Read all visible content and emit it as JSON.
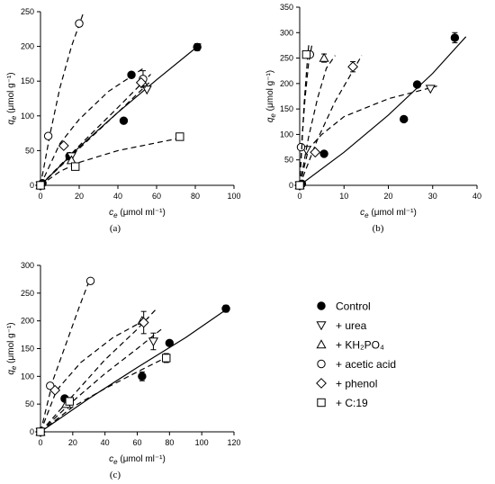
{
  "legend": [
    {
      "marker": "filled-circle",
      "label": "Control"
    },
    {
      "marker": "down-triangle",
      "label": "+ urea"
    },
    {
      "marker": "up-triangle",
      "label": "+ KH₂PO₄"
    },
    {
      "marker": "circle",
      "label": "+ acetic acid"
    },
    {
      "marker": "diamond",
      "label": "+ phenol"
    },
    {
      "marker": "square",
      "label": "+ C:19"
    }
  ],
  "chart_data": [
    {
      "type": "scatter",
      "panel_label": "(a)",
      "xlabel": "c_e (μmol ml⁻¹)",
      "ylabel": "q_e (μmol g⁻¹)",
      "xlim": [
        0,
        100
      ],
      "ylim": [
        0,
        250
      ],
      "xticks": [
        0,
        20,
        40,
        60,
        80,
        100
      ],
      "yticks": [
        0,
        50,
        100,
        150,
        200,
        250
      ],
      "series": [
        {
          "name": "Control",
          "marker": "filled-circle",
          "line": "solid",
          "points": [
            [
              0,
              0
            ],
            [
              1,
              3
            ],
            [
              15,
              42
            ],
            [
              43,
              93
            ],
            [
              47,
              159
            ],
            [
              81,
              199
            ]
          ],
          "errors": [
            [
              81,
              199,
              5
            ]
          ],
          "curve": [
            [
              0,
              0
            ],
            [
              20,
              55
            ],
            [
              40,
              105
            ],
            [
              60,
              152
            ],
            [
              83,
              204
            ]
          ]
        },
        {
          "name": "+ urea",
          "marker": "down-triangle",
          "line": "dashed",
          "points": [
            [
              0,
              0
            ],
            [
              16,
              42
            ],
            [
              55,
              138
            ]
          ],
          "curve": [
            [
              0,
              0
            ],
            [
              20,
              53
            ],
            [
              40,
              105
            ],
            [
              57,
              150
            ]
          ]
        },
        {
          "name": "+ KH₂PO₄",
          "marker": "up-triangle",
          "line": "dashed",
          "points": [
            [
              0,
              0
            ],
            [
              16,
              36
            ],
            [
              53,
              148
            ]
          ],
          "curve": [
            [
              0,
              0
            ],
            [
              20,
              57
            ],
            [
              40,
              112
            ],
            [
              57,
              160
            ]
          ]
        },
        {
          "name": "+ acetic acid",
          "marker": "circle",
          "line": "dashed",
          "points": [
            [
              0,
              0
            ],
            [
              4,
              71
            ],
            [
              20,
              233
            ],
            [
              53,
              153
            ]
          ],
          "errors": [
            [
              53,
              153,
              12
            ]
          ],
          "curve": [
            [
              0,
              0
            ],
            [
              5,
              75
            ],
            [
              10,
              140
            ],
            [
              16,
              200
            ],
            [
              22,
              247
            ]
          ]
        },
        {
          "name": "+ phenol",
          "marker": "diamond",
          "line": "dashed",
          "points": [
            [
              0,
              0
            ],
            [
              12,
              57
            ],
            [
              52,
              148
            ]
          ],
          "curve": [
            [
              0,
              0
            ],
            [
              10,
              60
            ],
            [
              20,
              95
            ],
            [
              35,
              135
            ],
            [
              54,
              170
            ]
          ]
        },
        {
          "name": "+ C:19",
          "marker": "square",
          "line": "dashed",
          "points": [
            [
              0,
              0
            ],
            [
              18,
              27
            ],
            [
              72,
              70
            ]
          ],
          "errors": [
            [
              72,
              70,
              5
            ]
          ],
          "curve": [
            [
              0,
              0
            ],
            [
              10,
              20
            ],
            [
              20,
              33
            ],
            [
              40,
              50
            ],
            [
              72,
              68
            ]
          ]
        }
      ]
    },
    {
      "type": "scatter",
      "panel_label": "(b)",
      "xlabel": "c_e (μmol ml⁻¹)",
      "ylabel": "q_e (μmol g⁻¹)",
      "xlim": [
        0,
        40
      ],
      "ylim": [
        0,
        350
      ],
      "xticks": [
        0,
        10,
        20,
        30,
        40
      ],
      "yticks": [
        0,
        50,
        100,
        150,
        200,
        250,
        300,
        350
      ],
      "series": [
        {
          "name": "Control",
          "marker": "filled-circle",
          "line": "solid",
          "points": [
            [
              0.5,
              3
            ],
            [
              5.5,
              62
            ],
            [
              23.5,
              130
            ],
            [
              26.5,
              198
            ],
            [
              35,
              290
            ]
          ],
          "errors": [
            [
              35,
              290,
              10
            ]
          ],
          "curve": [
            [
              0,
              0
            ],
            [
              10,
              65
            ],
            [
              20,
              138
            ],
            [
              30,
              220
            ],
            [
              37.5,
              292
            ]
          ]
        },
        {
          "name": "+ urea",
          "marker": "down-triangle",
          "line": "dashed",
          "points": [
            [
              0,
              0
            ],
            [
              1.5,
              70
            ],
            [
              29.5,
              190
            ]
          ],
          "curve": [
            [
              0,
              0
            ],
            [
              2,
              72
            ],
            [
              5,
              100
            ],
            [
              10,
              135
            ],
            [
              20,
              170
            ],
            [
              31,
              195
            ]
          ]
        },
        {
          "name": "+ KH₂PO₄",
          "marker": "up-triangle",
          "line": "dashed",
          "points": [
            [
              0,
              0
            ],
            [
              5.5,
              250
            ]
          ],
          "errors": [
            [
              5.5,
              250,
              8
            ]
          ],
          "curve": [
            [
              0,
              0
            ],
            [
              2,
              95
            ],
            [
              4,
              170
            ],
            [
              6,
              230
            ],
            [
              8,
              255
            ]
          ]
        },
        {
          "name": "+ acetic acid",
          "marker": "circle",
          "line": "dashed",
          "points": [
            [
              0,
              0
            ],
            [
              0.3,
              75
            ],
            [
              2.3,
              257
            ]
          ],
          "curve": [
            [
              0,
              0
            ],
            [
              0.5,
              90
            ],
            [
              1.2,
              170
            ],
            [
              2,
              240
            ],
            [
              2.8,
              278
            ]
          ]
        },
        {
          "name": "+ phenol",
          "marker": "diamond",
          "line": "dashed",
          "points": [
            [
              0,
              0
            ],
            [
              3.5,
              65
            ],
            [
              12,
              233
            ]
          ],
          "errors": [
            [
              12,
              233,
              10
            ]
          ],
          "curve": [
            [
              0,
              0
            ],
            [
              4,
              90
            ],
            [
              8,
              165
            ],
            [
              12,
              225
            ],
            [
              14,
              255
            ]
          ]
        },
        {
          "name": "+ C:19",
          "marker": "square",
          "line": "dashed",
          "points": [
            [
              0,
              0
            ],
            [
              1.5,
              257
            ]
          ],
          "curve": [
            [
              0,
              0
            ],
            [
              0.5,
              80
            ],
            [
              1,
              160
            ],
            [
              1.8,
              255
            ],
            [
              2.1,
              280
            ]
          ]
        }
      ]
    },
    {
      "type": "scatter",
      "panel_label": "(c)",
      "xlabel": "c_e (μmol ml⁻¹)",
      "ylabel": "q_e (μmol g⁻¹)",
      "xlim": [
        0,
        120
      ],
      "ylim": [
        0,
        300
      ],
      "xticks": [
        0,
        20,
        40,
        60,
        80,
        100,
        120
      ],
      "yticks": [
        0,
        50,
        100,
        150,
        200,
        250,
        300
      ],
      "series": [
        {
          "name": "Control",
          "marker": "filled-circle",
          "line": "solid",
          "points": [
            [
              0,
              0
            ],
            [
              15,
              60
            ],
            [
              63,
              100
            ],
            [
              80,
              160
            ],
            [
              115,
              222
            ]
          ],
          "errors": [
            [
              63,
              100,
              8
            ],
            [
              115,
              222,
              6
            ]
          ],
          "curve": [
            [
              0,
              0
            ],
            [
              30,
              60
            ],
            [
              60,
              116
            ],
            [
              90,
              170
            ],
            [
              117,
              224
            ]
          ]
        },
        {
          "name": "+ urea",
          "marker": "down-triangle",
          "line": "dashed",
          "points": [
            [
              0,
              0
            ],
            [
              17,
              50
            ],
            [
              70,
              163
            ]
          ],
          "errors": [
            [
              70,
              163,
              15
            ]
          ],
          "curve": [
            [
              0,
              0
            ],
            [
              20,
              55
            ],
            [
              40,
              105
            ],
            [
              60,
              150
            ],
            [
              75,
              185
            ]
          ]
        },
        {
          "name": "+ KH₂PO₄",
          "marker": "up-triangle",
          "line": "dashed",
          "points": [
            [
              0,
              0
            ],
            [
              16,
              50
            ],
            [
              63,
              200
            ]
          ],
          "curve": [
            [
              0,
              0
            ],
            [
              20,
              65
            ],
            [
              40,
              130
            ],
            [
              60,
              185
            ],
            [
              72,
              222
            ]
          ]
        },
        {
          "name": "+ acetic acid",
          "marker": "circle",
          "line": "dashed",
          "points": [
            [
              0,
              0
            ],
            [
              6,
              83
            ],
            [
              31,
              272
            ]
          ],
          "curve": [
            [
              0,
              0
            ],
            [
              8,
              95
            ],
            [
              16,
              160
            ],
            [
              24,
              225
            ],
            [
              31,
              278
            ]
          ]
        },
        {
          "name": "+ phenol",
          "marker": "diamond",
          "line": "dashed",
          "points": [
            [
              0,
              0
            ],
            [
              9,
              75
            ],
            [
              64,
              197
            ]
          ],
          "errors": [
            [
              64,
              197,
              20
            ]
          ],
          "curve": [
            [
              0,
              0
            ],
            [
              10,
              75
            ],
            [
              25,
              125
            ],
            [
              45,
              170
            ],
            [
              67,
              205
            ]
          ]
        },
        {
          "name": "+ C:19",
          "marker": "square",
          "line": "dashed",
          "points": [
            [
              0,
              0
            ],
            [
              18,
              55
            ],
            [
              78,
              133
            ]
          ],
          "errors": [
            [
              78,
              133,
              8
            ]
          ],
          "curve": [
            [
              0,
              0
            ],
            [
              20,
              45
            ],
            [
              40,
              78
            ],
            [
              60,
              108
            ],
            [
              80,
              137
            ]
          ]
        }
      ]
    }
  ]
}
